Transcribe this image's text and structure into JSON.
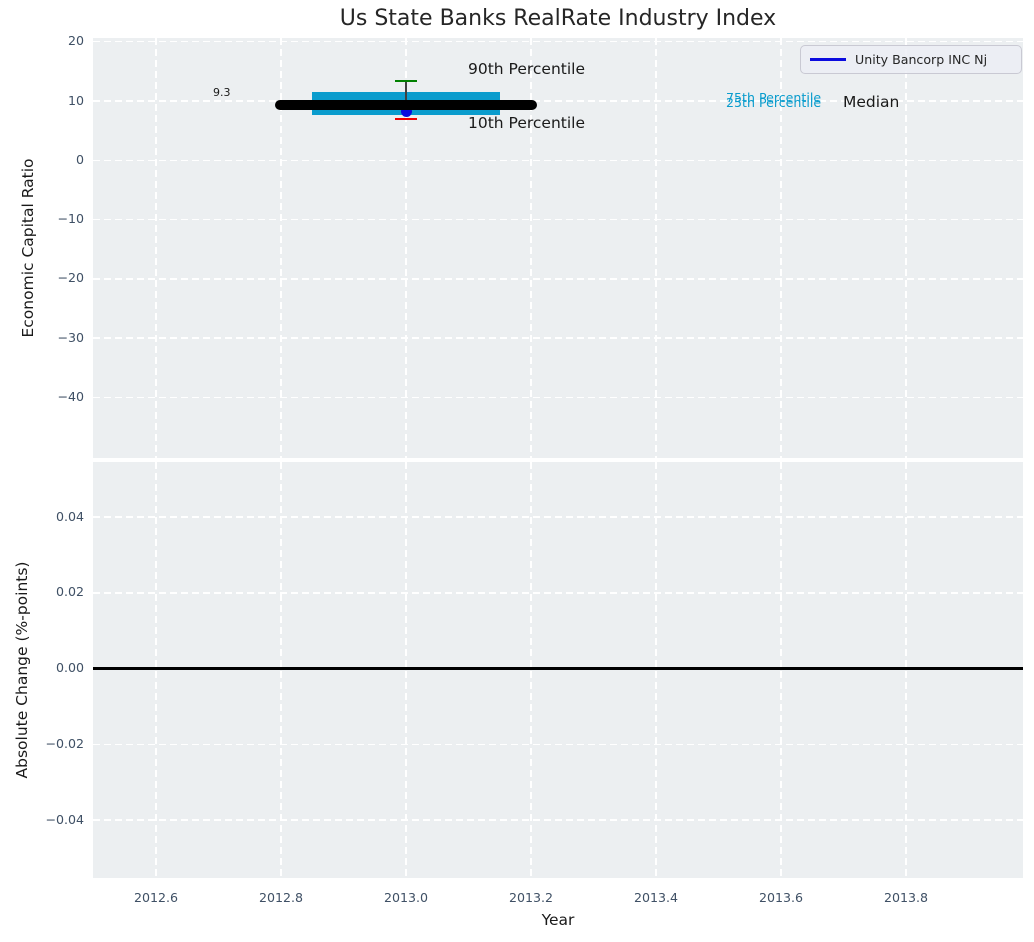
{
  "title": "Us State Banks RealRate Industry Index",
  "legend": {
    "label": "Unity Bancorp INC Nj"
  },
  "colors": {
    "axes_background": "#eceff1",
    "gridline": "#ffffff",
    "band": "#0a9ccd",
    "median_line": "#000000",
    "p90_marker": "#008000",
    "p10_marker": "#ee0000",
    "company": "#0b0bdf",
    "zero_line": "#000000",
    "tick_label": "#3f5065",
    "text": "#1a1a1a"
  },
  "top_plot": {
    "ylabel": "Economic Capital Ratio",
    "yticks": [
      "20",
      "10",
      "0",
      "−10",
      "−20",
      "−30",
      "−40"
    ],
    "annotations": {
      "p90": "90th Percentile",
      "p10": "10th Percentile",
      "p75": "75th Percentile",
      "p25": "25th Percentile",
      "median": "Median",
      "median_value": "9.3"
    }
  },
  "bottom_plot": {
    "ylabel": "Absolute Change (%-points)",
    "yticks": [
      "0.04",
      "0.02",
      "0.00",
      "−0.02",
      "−0.04"
    ]
  },
  "xaxis": {
    "label": "Year",
    "ticks": [
      "2012.6",
      "2012.8",
      "2013.0",
      "2013.2",
      "2013.4",
      "2013.6",
      "2013.8"
    ]
  },
  "chart_data": [
    {
      "type": "boxplot",
      "title": "Us State Banks RealRate Industry Index",
      "xlabel": "Year",
      "ylabel": "Economic Capital Ratio",
      "xlim": [
        2012.5,
        2013.99
      ],
      "ylim": [
        -50.7,
        20.5
      ],
      "xticks": [
        2012.6,
        2012.8,
        2013.0,
        2013.2,
        2013.4,
        2013.6,
        2013.8
      ],
      "yticks": [
        20,
        10,
        0,
        -10,
        -20,
        -30,
        -40
      ],
      "grid": true,
      "legend_position": "upper right",
      "x": 2013.0,
      "median": 9.3,
      "p75": 11.6,
      "p25": 7.7,
      "p90": 13.4,
      "p10": 7.0,
      "median_x_extent": [
        2012.79,
        2013.21
      ],
      "band_x_extent": [
        2012.85,
        2013.15
      ],
      "whisker_x_extent": [
        2012.982,
        2013.018
      ],
      "company_point": {
        "name": "Unity Bancorp INC Nj",
        "x": 2013.0,
        "y": 8.3
      },
      "annotations": [
        "9.3",
        "90th Percentile",
        "10th Percentile",
        "75th Percentile",
        "25th Percentile",
        "Median"
      ]
    },
    {
      "type": "line",
      "xlabel": "Year",
      "ylabel": "Absolute Change (%-points)",
      "xlim": [
        2012.5,
        2013.99
      ],
      "ylim": [
        -0.055,
        0.055
      ],
      "yticks": [
        0.04,
        0.02,
        0.0,
        -0.02,
        -0.04
      ],
      "grid": true,
      "series": [
        {
          "name": "zero-line",
          "y": 0.0,
          "x_extent": [
            2012.5,
            2013.99
          ],
          "color": "#000000"
        }
      ]
    }
  ]
}
